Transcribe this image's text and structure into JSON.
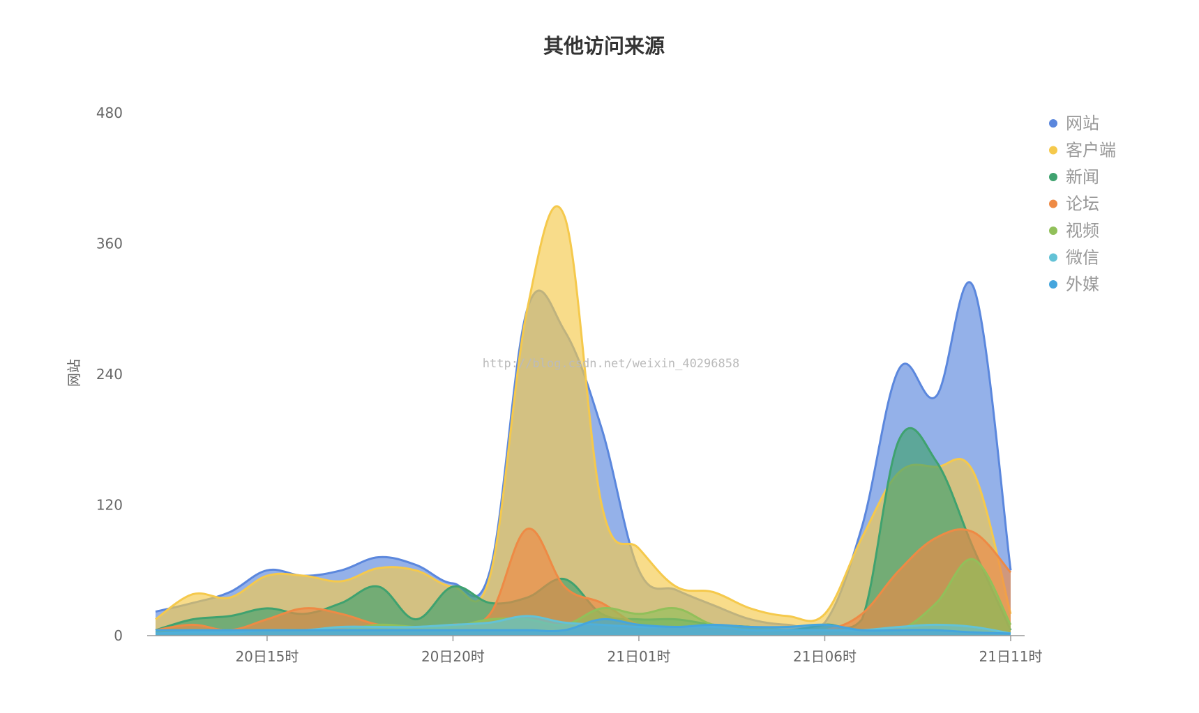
{
  "chart_data": {
    "type": "area",
    "title": "其他访问来源",
    "ylabel": "网站",
    "xlabel": "",
    "ylim": [
      0,
      480
    ],
    "yticks": [
      0,
      120,
      240,
      360,
      480
    ],
    "xlim": [
      12,
      35
    ],
    "xticks": [
      {
        "x": 15,
        "label": "20日15时"
      },
      {
        "x": 20,
        "label": "20日20时"
      },
      {
        "x": 25,
        "label": "21日01时"
      },
      {
        "x": 30,
        "label": "21日06时"
      },
      {
        "x": 35,
        "label": "21日11时"
      }
    ],
    "grid": false,
    "legend_position": "top-right",
    "x": [
      12,
      13,
      14,
      15,
      16,
      17,
      18,
      19,
      20,
      21,
      22,
      23,
      24,
      25,
      26,
      27,
      28,
      29,
      30,
      31,
      32,
      33,
      34,
      35
    ],
    "series": [
      {
        "name": "网站",
        "color": "#5b87dd",
        "values": [
          22,
          30,
          40,
          60,
          55,
          60,
          72,
          65,
          48,
          60,
          300,
          280,
          190,
          60,
          42,
          28,
          15,
          10,
          12,
          100,
          245,
          220,
          320,
          60
        ]
      },
      {
        "name": "客户端",
        "color": "#f5c94c",
        "values": [
          15,
          38,
          35,
          55,
          55,
          50,
          62,
          60,
          45,
          55,
          300,
          385,
          120,
          80,
          45,
          40,
          25,
          18,
          20,
          90,
          150,
          155,
          150,
          20
        ]
      },
      {
        "name": "新闻",
        "color": "#3fa26f",
        "values": [
          5,
          15,
          18,
          25,
          20,
          30,
          45,
          15,
          45,
          30,
          35,
          52,
          20,
          15,
          15,
          10,
          8,
          5,
          10,
          15,
          180,
          160,
          80,
          5
        ]
      },
      {
        "name": "论坛",
        "color": "#ee8a45",
        "values": [
          5,
          10,
          5,
          15,
          25,
          20,
          10,
          8,
          10,
          20,
          98,
          45,
          30,
          10,
          8,
          5,
          5,
          5,
          5,
          20,
          60,
          90,
          95,
          58
        ]
      },
      {
        "name": "视频",
        "color": "#91c05a",
        "values": [
          3,
          5,
          3,
          5,
          5,
          5,
          10,
          8,
          8,
          15,
          15,
          10,
          25,
          20,
          25,
          10,
          8,
          5,
          5,
          5,
          5,
          30,
          70,
          10
        ]
      },
      {
        "name": "微信",
        "color": "#63c2d6",
        "values": [
          2,
          3,
          3,
          5,
          5,
          8,
          8,
          8,
          10,
          12,
          18,
          12,
          10,
          8,
          8,
          8,
          5,
          5,
          5,
          5,
          8,
          10,
          8,
          2
        ]
      },
      {
        "name": "外媒",
        "color": "#45a5dd",
        "values": [
          5,
          5,
          5,
          5,
          5,
          5,
          5,
          5,
          5,
          5,
          5,
          5,
          15,
          10,
          8,
          10,
          8,
          8,
          10,
          5,
          5,
          5,
          3,
          2
        ]
      }
    ]
  },
  "watermark": "http://blog.csdn.net/weixin_40296858"
}
